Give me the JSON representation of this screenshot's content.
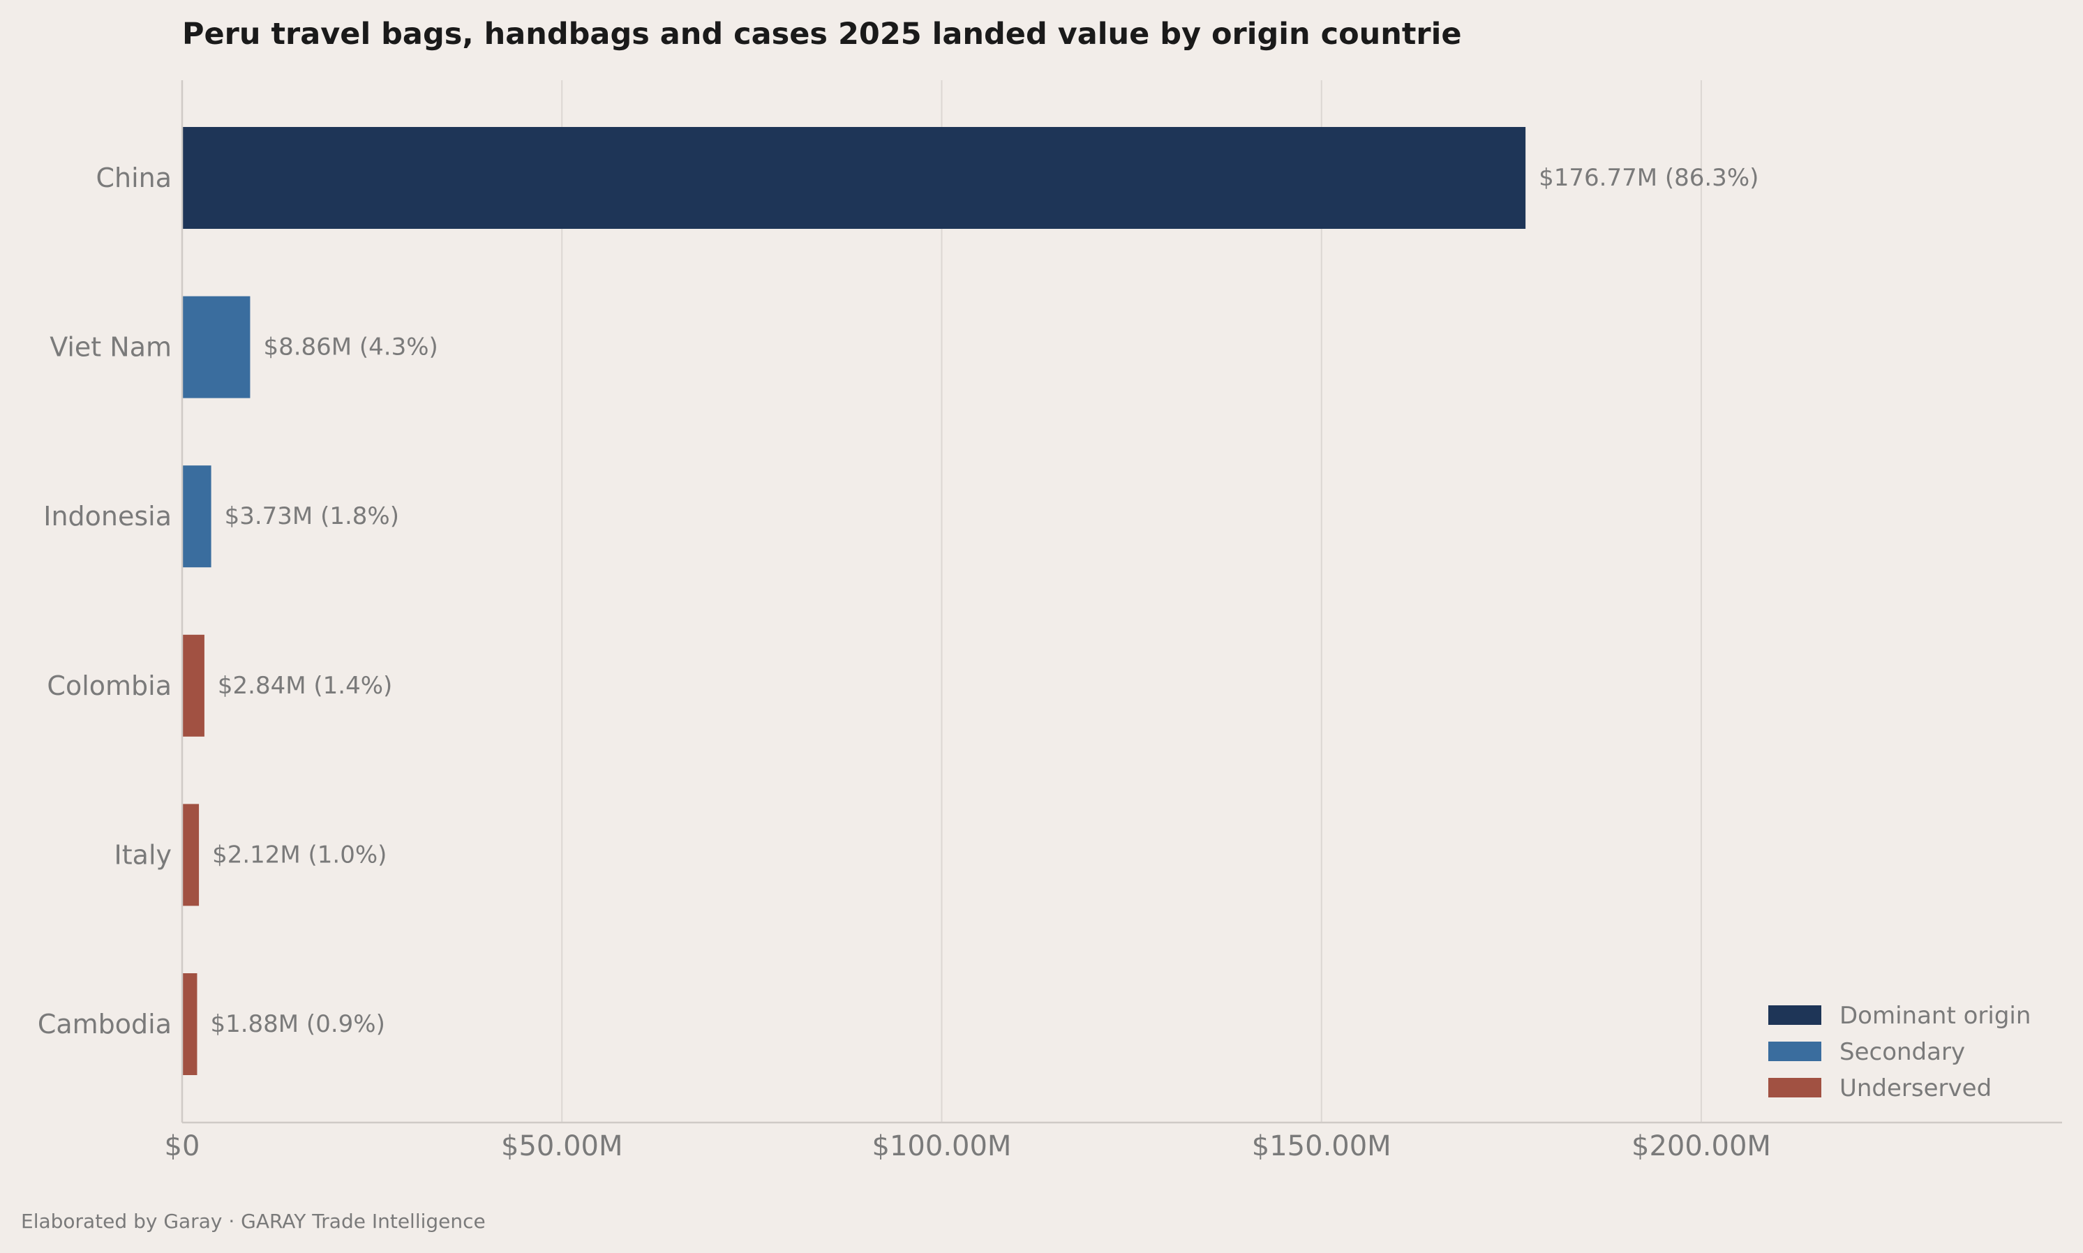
{
  "chart_data": {
    "type": "bar",
    "orientation": "horizontal",
    "title": "Peru travel bags, handbags and cases 2025 landed value by origin countrie",
    "xlabel": "",
    "ylabel": "",
    "categories": [
      "China",
      "Viet Nam",
      "Indonesia",
      "Colombia",
      "Italy",
      "Cambodia"
    ],
    "values": [
      176.77,
      8.86,
      3.73,
      2.84,
      2.12,
      1.88
    ],
    "value_unit": "$M",
    "data_labels": [
      "$176.77M  (86.3%)",
      "$8.86M  (4.3%)",
      "$3.73M  (1.8%)",
      "$2.84M  (1.4%)",
      "$2.12M  (1.0%)",
      "$1.88M  (0.9%)"
    ],
    "bar_groups": [
      "Dominant origin",
      "Secondary",
      "Secondary",
      "Underserved",
      "Underserved",
      "Underserved"
    ],
    "xlim": [
      0,
      247.5
    ],
    "xticks": [
      0,
      50,
      100,
      150,
      200
    ],
    "xtick_labels": [
      "$0",
      "$50.00M",
      "$100.00M",
      "$150.00M",
      "$200.00M"
    ],
    "grid": "vertical",
    "legend": {
      "placement": "bottom-right",
      "entries": [
        {
          "label": "Dominant origin",
          "color": "#1e3557"
        },
        {
          "label": "Secondary",
          "color": "#3a6d9e"
        },
        {
          "label": "Underserved",
          "color": "#a15142"
        }
      ]
    }
  },
  "footer": "Elaborated by Garay  ·  GARAY Trade Intelligence",
  "colors": {
    "background": "#f2ede9",
    "Dominant origin": "#1e3557",
    "Secondary": "#3a6d9e",
    "Underserved": "#a15142"
  }
}
